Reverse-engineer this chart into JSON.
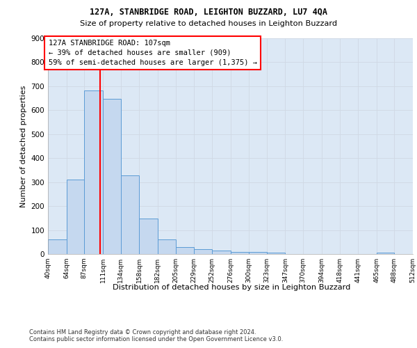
{
  "title1": "127A, STANBRIDGE ROAD, LEIGHTON BUZZARD, LU7 4QA",
  "title2": "Size of property relative to detached houses in Leighton Buzzard",
  "xlabel": "Distribution of detached houses by size in Leighton Buzzard",
  "ylabel": "Number of detached properties",
  "footnote": "Contains HM Land Registry data © Crown copyright and database right 2024.\nContains public sector information licensed under the Open Government Licence v3.0.",
  "bar_values": [
    62,
    310,
    682,
    648,
    328,
    148,
    62,
    30,
    20,
    15,
    10,
    10,
    5,
    0,
    0,
    0,
    0,
    0,
    5,
    0
  ],
  "bin_labels": [
    "40sqm",
    "64sqm",
    "87sqm",
    "111sqm",
    "134sqm",
    "158sqm",
    "182sqm",
    "205sqm",
    "229sqm",
    "252sqm",
    "276sqm",
    "300sqm",
    "323sqm",
    "347sqm",
    "370sqm",
    "394sqm",
    "418sqm",
    "441sqm",
    "465sqm",
    "488sqm",
    "512sqm"
  ],
  "bar_color": "#c5d8ef",
  "bar_edge_color": "#5b9bd5",
  "grid_color": "#d0d8e4",
  "property_sqm": 107,
  "vline_color": "red",
  "annotation_text": "127A STANBRIDGE ROAD: 107sqm\n← 39% of detached houses are smaller (909)\n59% of semi-detached houses are larger (1,375) →",
  "ylim": [
    0,
    900
  ],
  "yticks": [
    0,
    100,
    200,
    300,
    400,
    500,
    600,
    700,
    800,
    900
  ],
  "bin_edges": [
    40,
    64,
    87,
    111,
    134,
    158,
    182,
    205,
    229,
    252,
    276,
    300,
    323,
    347,
    370,
    394,
    418,
    441,
    465,
    488,
    512
  ],
  "bg_color": "#dce8f5"
}
